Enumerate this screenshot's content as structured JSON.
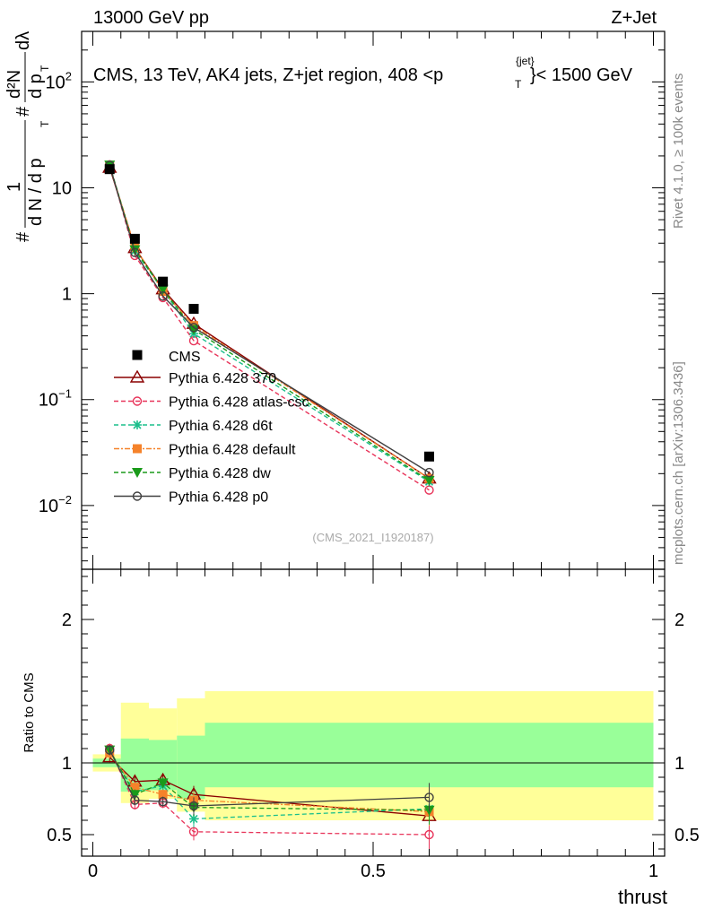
{
  "header": {
    "left": "13000 GeV pp",
    "right": "Z+Jet",
    "plot_title": "CMS, 13 TeV, AK4 jets, Z+jet region, 408 <p",
    "plot_title_sup": "{jet}",
    "plot_title_sub": "T",
    "plot_title_tail": "}< 1500 GeV",
    "ylabel_main": "1/N dN/dλ",
    "ylabel_prefix": "#",
    "ylabel_frac_num": "1",
    "ylabel_frac_den": "d N / d p",
    "ylabel_frac_den_sub": "T",
    "ylabel_hash2": "#",
    "ylabel_d2n": "d²N",
    "ylabel_dpt": "d p",
    "ylabel_dpt_sub": "T",
    "ylabel_dlambda": "dλ",
    "side_rivet": "Rivet 4.1.0, ≥ 100k events",
    "side_mcplots": "mcplots.cern.ch [arXiv:1306.3436]",
    "analysis_tag": "(CMS_2021_I1920187)",
    "ratio_label": "Ratio to CMS",
    "xlabel": "thrust"
  },
  "chart_data": {
    "type": "line",
    "xlabel": "thrust",
    "ylabel": "1/N dN/dλ",
    "yscale": "log",
    "ylim": [
      0.0025,
      300
    ],
    "xlim": [
      -0.02,
      1.02
    ],
    "x_ticks": [
      "0",
      "0.5",
      "1"
    ],
    "y_ticks": [
      {
        "value": 0.01,
        "base": "10",
        "exp": "−2"
      },
      {
        "value": 0.1,
        "base": "10",
        "exp": "−1"
      },
      {
        "value": 1,
        "base": "1",
        "exp": ""
      },
      {
        "value": 10,
        "base": "10",
        "exp": ""
      },
      {
        "value": 100,
        "base": "10",
        "exp": "2"
      }
    ],
    "x": [
      0.03,
      0.075,
      0.125,
      0.18,
      0.6
    ],
    "data": {
      "name": "CMS",
      "values": [
        15,
        3.3,
        1.3,
        0.72,
        0.029
      ]
    },
    "series": [
      {
        "name": "Pythia 6.428 370",
        "color": "#8b0000",
        "dash": "",
        "marker": "triangle-open",
        "values": [
          15.5,
          2.7,
          1.1,
          0.52,
          0.018
        ]
      },
      {
        "name": "Pythia 6.428 atlas-csc",
        "color": "#e8345a",
        "dash": "5,3",
        "marker": "circle-open",
        "values": [
          16.5,
          2.3,
          0.92,
          0.36,
          0.014
        ]
      },
      {
        "name": "Pythia 6.428 d6t",
        "color": "#1bbf8c",
        "dash": "5,3",
        "marker": "star",
        "values": [
          16.2,
          2.55,
          1.08,
          0.42,
          0.0168
        ]
      },
      {
        "name": "Pythia 6.428 default",
        "color": "#f5822a",
        "dash": "6,2,2,2",
        "marker": "square",
        "values": [
          16.0,
          2.75,
          1.05,
          0.5,
          0.018
        ]
      },
      {
        "name": "Pythia 6.428 dw",
        "color": "#1a9a1a",
        "dash": "5,3",
        "marker": "triangle-down",
        "values": [
          16.4,
          2.6,
          1.1,
          0.46,
          0.0172
        ]
      },
      {
        "name": "Pythia 6.428 p0",
        "color": "#404040",
        "dash": "",
        "marker": "circle-open",
        "values": [
          16.3,
          2.45,
          0.95,
          0.48,
          0.0205
        ]
      }
    ],
    "ratio": {
      "ylim": [
        0.35,
        2.35
      ],
      "y_ticks": [
        "0.5",
        "1",
        "2"
      ],
      "bands": [
        {
          "x0": 0.0,
          "x1": 0.05,
          "yellow": [
            0.94,
            1.06
          ],
          "green": [
            0.97,
            1.03
          ]
        },
        {
          "x0": 0.05,
          "x1": 0.1,
          "yellow": [
            0.72,
            1.42
          ],
          "green": [
            0.8,
            1.17
          ]
        },
        {
          "x0": 0.1,
          "x1": 0.15,
          "yellow": [
            0.75,
            1.38
          ],
          "green": [
            0.81,
            1.16
          ]
        },
        {
          "x0": 0.15,
          "x1": 0.2,
          "yellow": [
            0.66,
            1.45
          ],
          "green": [
            0.75,
            1.19
          ]
        },
        {
          "x0": 0.2,
          "x1": 1.0,
          "yellow": [
            0.6,
            1.5
          ],
          "green": [
            0.83,
            1.28
          ]
        }
      ],
      "series_values": [
        [
          1.04,
          0.87,
          0.88,
          0.78,
          0.63
        ],
        [
          1.1,
          0.71,
          0.72,
          0.52,
          0.5
        ],
        [
          1.08,
          0.8,
          0.84,
          0.61,
          0.68
        ],
        [
          1.07,
          0.83,
          0.78,
          0.74,
          0.66
        ],
        [
          1.09,
          0.78,
          0.86,
          0.69,
          0.67
        ],
        [
          1.09,
          0.74,
          0.73,
          0.7,
          0.76
        ]
      ]
    }
  }
}
